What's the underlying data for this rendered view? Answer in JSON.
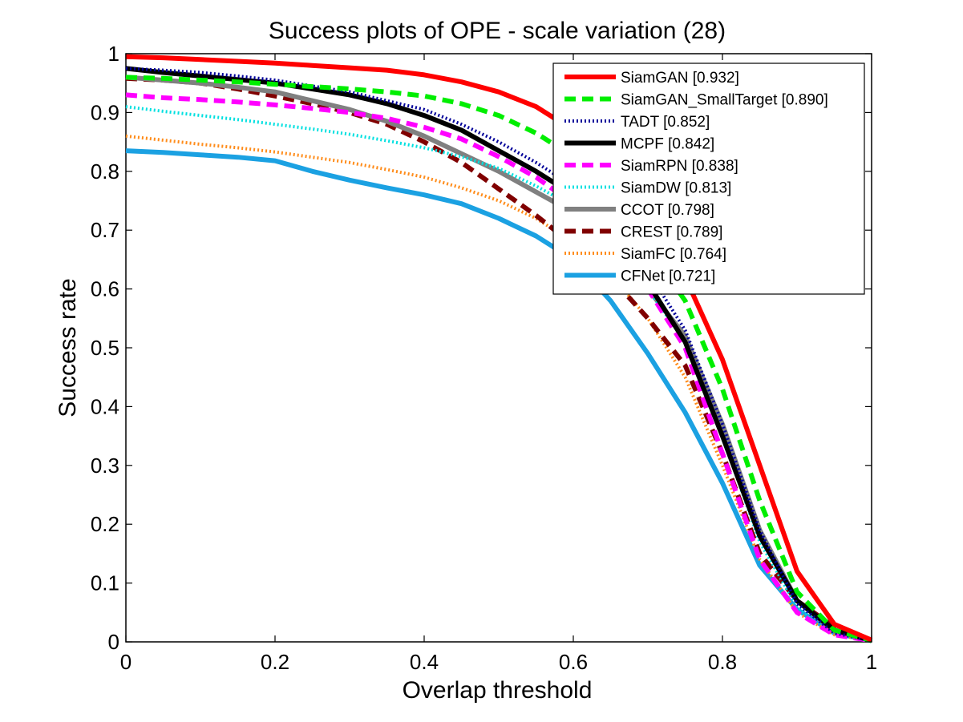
{
  "chart_data": {
    "type": "line",
    "title": "Success plots of OPE - scale variation (28)",
    "xlabel": "Overlap threshold",
    "ylabel": "Success rate",
    "xlim": [
      0,
      1
    ],
    "ylim": [
      0,
      1
    ],
    "xticks": [
      "0",
      "0.2",
      "0.4",
      "0.6",
      "0.8",
      "1"
    ],
    "yticks": [
      "0",
      "0.1",
      "0.2",
      "0.3",
      "0.4",
      "0.5",
      "0.6",
      "0.7",
      "0.8",
      "0.9",
      "1"
    ],
    "grid": false,
    "legend_position": "top-right",
    "x": [
      0,
      0.05,
      0.1,
      0.15,
      0.2,
      0.25,
      0.3,
      0.35,
      0.4,
      0.45,
      0.5,
      0.55,
      0.6,
      0.65,
      0.7,
      0.75,
      0.8,
      0.85,
      0.9,
      0.95,
      1.0
    ],
    "series": [
      {
        "name": "SiamGAN [0.932]",
        "color": "#ff0000",
        "dash": "solid",
        "width": 6,
        "values": [
          0.995,
          0.993,
          0.99,
          0.987,
          0.984,
          0.98,
          0.976,
          0.972,
          0.964,
          0.952,
          0.935,
          0.91,
          0.87,
          0.8,
          0.7,
          0.62,
          0.48,
          0.3,
          0.12,
          0.03,
          0.003
        ]
      },
      {
        "name": "SiamGAN_SmallTarget [0.890]",
        "color": "#00ee00",
        "dash": "dashed",
        "width": 6,
        "values": [
          0.96,
          0.958,
          0.955,
          0.952,
          0.948,
          0.944,
          0.94,
          0.935,
          0.928,
          0.915,
          0.895,
          0.865,
          0.825,
          0.76,
          0.67,
          0.58,
          0.43,
          0.24,
          0.085,
          0.02,
          0.002
        ]
      },
      {
        "name": "TADT [0.852]",
        "color": "#000099",
        "dash": "dotted",
        "width": 4,
        "values": [
          0.975,
          0.972,
          0.968,
          0.962,
          0.955,
          0.945,
          0.935,
          0.92,
          0.905,
          0.88,
          0.85,
          0.815,
          0.775,
          0.72,
          0.63,
          0.53,
          0.37,
          0.19,
          0.065,
          0.015,
          0.002
        ]
      },
      {
        "name": "MCPF [0.842]",
        "color": "#000000",
        "dash": "solid",
        "width": 6,
        "values": [
          0.975,
          0.968,
          0.962,
          0.956,
          0.95,
          0.94,
          0.93,
          0.915,
          0.895,
          0.87,
          0.835,
          0.8,
          0.76,
          0.7,
          0.61,
          0.51,
          0.35,
          0.18,
          0.07,
          0.02,
          0.002
        ]
      },
      {
        "name": "SiamRPN [0.838]",
        "color": "#ff00ff",
        "dash": "dashed",
        "width": 6,
        "values": [
          0.93,
          0.925,
          0.922,
          0.918,
          0.913,
          0.907,
          0.9,
          0.89,
          0.875,
          0.855,
          0.825,
          0.79,
          0.745,
          0.69,
          0.6,
          0.5,
          0.32,
          0.14,
          0.05,
          0.012,
          0.002
        ]
      },
      {
        "name": "SiamDW [0.813]",
        "color": "#00e0e0",
        "dash": "dotted",
        "width": 4,
        "values": [
          0.91,
          0.902,
          0.895,
          0.888,
          0.88,
          0.872,
          0.863,
          0.852,
          0.84,
          0.825,
          0.805,
          0.775,
          0.74,
          0.685,
          0.6,
          0.51,
          0.35,
          0.17,
          0.06,
          0.015,
          0.002
        ]
      },
      {
        "name": "CCOT [0.798]",
        "color": "#808080",
        "dash": "solid",
        "width": 6,
        "values": [
          0.96,
          0.955,
          0.95,
          0.943,
          0.935,
          0.92,
          0.905,
          0.885,
          0.86,
          0.83,
          0.8,
          0.765,
          0.73,
          0.68,
          0.6,
          0.52,
          0.37,
          0.19,
          0.07,
          0.018,
          0.002
        ]
      },
      {
        "name": "CREST [0.789]",
        "color": "#800000",
        "dash": "dashed",
        "width": 6,
        "values": [
          0.958,
          0.955,
          0.95,
          0.94,
          0.928,
          0.915,
          0.9,
          0.88,
          0.85,
          0.815,
          0.77,
          0.725,
          0.675,
          0.62,
          0.55,
          0.47,
          0.32,
          0.15,
          0.07,
          0.025,
          0.003
        ]
      },
      {
        "name": "SiamFC [0.764]",
        "color": "#ff8c1a",
        "dash": "dotted",
        "width": 4,
        "values": [
          0.86,
          0.853,
          0.846,
          0.84,
          0.833,
          0.824,
          0.815,
          0.803,
          0.79,
          0.772,
          0.75,
          0.72,
          0.68,
          0.625,
          0.55,
          0.45,
          0.3,
          0.14,
          0.05,
          0.012,
          0.002
        ]
      },
      {
        "name": "CFNet [0.721]",
        "color": "#1ba1e2",
        "dash": "solid",
        "width": 6,
        "values": [
          0.835,
          0.832,
          0.828,
          0.824,
          0.818,
          0.8,
          0.785,
          0.772,
          0.76,
          0.745,
          0.72,
          0.69,
          0.65,
          0.58,
          0.49,
          0.39,
          0.27,
          0.13,
          0.055,
          0.015,
          0.002
        ]
      }
    ]
  }
}
